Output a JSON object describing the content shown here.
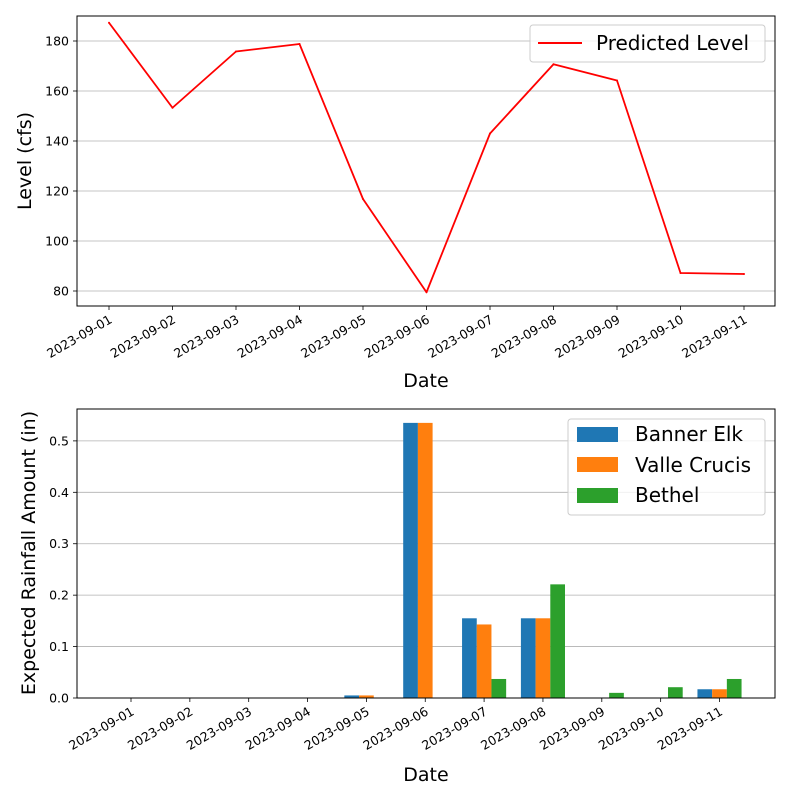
{
  "chart_data": [
    {
      "type": "line",
      "title": "",
      "x": [
        "2023-09-01",
        "2023-09-02",
        "2023-09-03",
        "2023-09-04",
        "2023-09-05",
        "2023-09-06",
        "2023-09-07",
        "2023-09-08",
        "2023-09-09",
        "2023-09-10",
        "2023-09-11"
      ],
      "series": [
        {
          "name": "Predicted Level",
          "color": "#ff0000",
          "values": [
            187.3,
            153.3,
            175.8,
            178.8,
            116.8,
            79.5,
            143.0,
            170.7,
            164.2,
            87.2,
            86.8
          ]
        }
      ],
      "xlabel": "Date",
      "ylabel": "Level (cfs)",
      "ylim": [
        74,
        190
      ],
      "yticks": [
        80,
        100,
        120,
        140,
        160,
        180
      ],
      "grid": "y",
      "legend": "upper right"
    },
    {
      "type": "bar",
      "title": "",
      "categories": [
        "2023-09-01",
        "2023-09-02",
        "2023-09-03",
        "2023-09-04",
        "2023-09-05",
        "2023-09-06",
        "2023-09-07",
        "2023-09-08",
        "2023-09-09",
        "2023-09-10",
        "2023-09-11"
      ],
      "series": [
        {
          "name": "Banner Elk",
          "color": "#1f77b4",
          "values": [
            0,
            0,
            0,
            0,
            0.005,
            0.535,
            0.155,
            0.155,
            0,
            0,
            0.017
          ]
        },
        {
          "name": "Valle Crucis",
          "color": "#ff7f0e",
          "values": [
            0,
            0,
            0,
            0,
            0.005,
            0.535,
            0.143,
            0.155,
            0,
            0,
            0.017
          ]
        },
        {
          "name": "Bethel",
          "color": "#2ca02c",
          "values": [
            0,
            0,
            0,
            0,
            0,
            0,
            0.037,
            0.221,
            0.01,
            0.021,
            0.037
          ]
        }
      ],
      "xlabel": "Date",
      "ylabel": "Expected Rainfall Amount (in)",
      "ylim": [
        0,
        0.562
      ],
      "yticks": [
        "0.0",
        "0.1",
        "0.2",
        "0.3",
        "0.4",
        "0.5"
      ],
      "grid": "y",
      "legend": "upper right"
    }
  ]
}
